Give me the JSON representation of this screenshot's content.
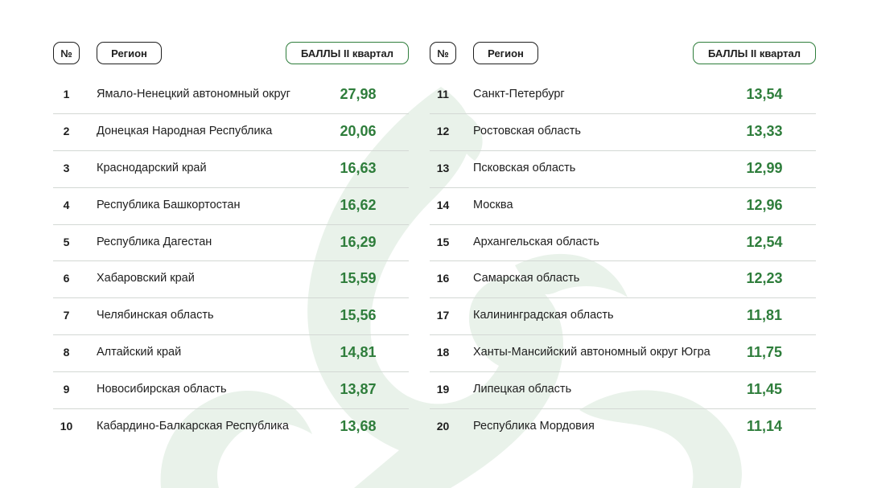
{
  "header": {
    "num_label": "№",
    "region_label": "Регион",
    "score_label": "БАЛЛЫ II квартал"
  },
  "left_rows": [
    {
      "num": "1",
      "region": "Ямало-Ненецкий автономный округ",
      "score": "27,98"
    },
    {
      "num": "2",
      "region": "Донецкая Народная Республика",
      "score": "20,06"
    },
    {
      "num": "3",
      "region": "Краснодарский край",
      "score": "16,63"
    },
    {
      "num": "4",
      "region": "Республика Башкортостан",
      "score": "16,62"
    },
    {
      "num": "5",
      "region": "Республика Дагестан",
      "score": "16,29"
    },
    {
      "num": "6",
      "region": "Хабаровский край",
      "score": "15,59"
    },
    {
      "num": "7",
      "region": "Челябинская область",
      "score": "15,56"
    },
    {
      "num": "8",
      "region": "Алтайский край",
      "score": "14,81"
    },
    {
      "num": "9",
      "region": "Новосибирская область",
      "score": "13,87"
    },
    {
      "num": "10",
      "region": "Кабардино-Балкарская Республика",
      "score": "13,68"
    }
  ],
  "right_rows": [
    {
      "num": "11",
      "region": "Санкт-Петербург",
      "score": "13,54"
    },
    {
      "num": "12",
      "region": "Ростовская область",
      "score": "13,33"
    },
    {
      "num": "13",
      "region": "Псковская область",
      "score": "12,99"
    },
    {
      "num": "14",
      "region": "Москва",
      "score": "12,96"
    },
    {
      "num": "15",
      "region": "Архангельская область",
      "score": "12,54"
    },
    {
      "num": "16",
      "region": "Самарская область",
      "score": "12,23"
    },
    {
      "num": "17",
      "region": "Калининградская область",
      "score": "11,81"
    },
    {
      "num": "18",
      "region": "Ханты-Мансийский автономный округ Югра",
      "score": "11,75"
    },
    {
      "num": "19",
      "region": "Липецкая область",
      "score": "11,45"
    },
    {
      "num": "20",
      "region": "Республика Мордовия",
      "score": "11,14"
    }
  ],
  "colors": {
    "accent": "#2e7d3b",
    "watermark": "#e9f2ea",
    "divider": "#d3d8d4",
    "text": "#1e1e1e"
  }
}
